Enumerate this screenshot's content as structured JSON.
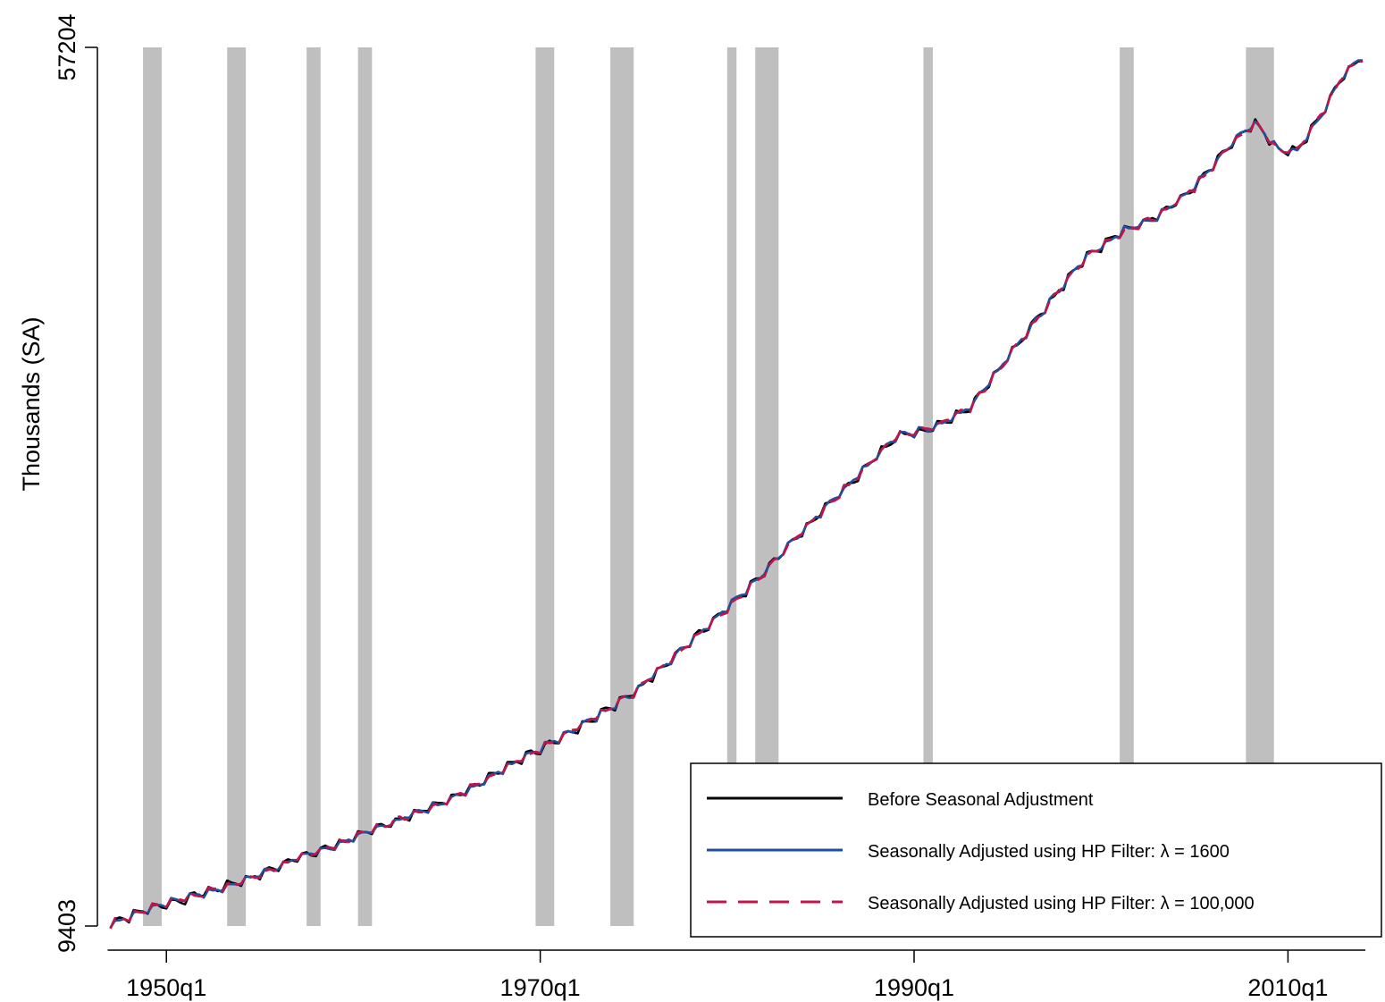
{
  "chart_data": {
    "type": "line",
    "title": "",
    "xlabel": "",
    "ylabel": "Thousands (SA)",
    "x_tick_labels": [
      "1950q1",
      "1970q1",
      "1990q1",
      "2010q1"
    ],
    "x_tick_values": [
      1950.0,
      1970.0,
      1990.0,
      2010.0
    ],
    "y_tick_labels": [
      "9403",
      "57204"
    ],
    "y_tick_values": [
      9403,
      57204
    ],
    "xlim": [
      1946.5,
      2015.0
    ],
    "ylim": [
      9403,
      57204
    ],
    "recession_bands": [
      [
        1948.75,
        1949.75
      ],
      [
        1953.25,
        1954.25
      ],
      [
        1957.5,
        1958.25
      ],
      [
        1960.25,
        1961.0
      ],
      [
        1969.75,
        1970.75
      ],
      [
        1973.75,
        1975.0
      ],
      [
        1980.0,
        1980.5
      ],
      [
        1981.5,
        1982.75
      ],
      [
        1990.5,
        1991.0
      ],
      [
        2001.0,
        2001.75
      ],
      [
        2007.75,
        2009.25
      ]
    ],
    "legend_position": "bottom-right",
    "series": [
      {
        "name": "Before Seasonal Adjustment",
        "color": "#000000",
        "dash": "solid",
        "seed": 1,
        "x": [
          1947.0,
          1949.0,
          1951.0,
          1953.0,
          1955.0,
          1957.0,
          1959.0,
          1961.0,
          1963.0,
          1965.0,
          1967.0,
          1969.0,
          1971.0,
          1973.0,
          1975.0,
          1977.0,
          1979.0,
          1981.0,
          1983.0,
          1985.0,
          1987.0,
          1989.0,
          1991.0,
          1993.0,
          1995.0,
          1997.0,
          1999.0,
          2001.0,
          2003.0,
          2005.0,
          2007.0,
          2008.25,
          2009.5,
          2010.5,
          2012.0,
          2013.0,
          2014.0
        ],
        "y": [
          9500,
          10300,
          10900,
          11500,
          12200,
          13100,
          13800,
          14600,
          15400,
          16200,
          17300,
          18500,
          19600,
          20800,
          22100,
          23900,
          25800,
          27600,
          29800,
          31900,
          33900,
          36000,
          36500,
          37600,
          40300,
          43000,
          45600,
          47100,
          48000,
          49600,
          52000,
          53100,
          51600,
          51600,
          53900,
          55800,
          56700
        ]
      },
      {
        "name": "Seasonally Adjusted using HP Filter: λ = 1600",
        "color": "#1f4fa0",
        "dash": "solid",
        "seed": 2,
        "x": [
          1947.0,
          1949.0,
          1951.0,
          1953.0,
          1955.0,
          1957.0,
          1959.0,
          1961.0,
          1963.0,
          1965.0,
          1967.0,
          1969.0,
          1971.0,
          1973.0,
          1975.0,
          1977.0,
          1979.0,
          1981.0,
          1983.0,
          1985.0,
          1987.0,
          1989.0,
          1991.0,
          1993.0,
          1995.0,
          1997.0,
          1999.0,
          2001.0,
          2003.0,
          2005.0,
          2007.0,
          2008.25,
          2009.5,
          2010.5,
          2012.0,
          2013.0,
          2014.0
        ],
        "y": [
          9500,
          10300,
          10900,
          11500,
          12200,
          13100,
          13800,
          14600,
          15400,
          16200,
          17300,
          18500,
          19600,
          20800,
          22100,
          23900,
          25800,
          27600,
          29800,
          31900,
          33900,
          36000,
          36500,
          37600,
          40300,
          43000,
          45600,
          47100,
          48000,
          49600,
          52000,
          53100,
          51600,
          51600,
          53900,
          55800,
          56700
        ]
      },
      {
        "name": "Seasonally Adjusted using HP Filter: λ = 100,000",
        "color": "#c0144a",
        "dash": "dashed",
        "seed": 3,
        "x": [
          1947.0,
          1949.0,
          1951.0,
          1953.0,
          1955.0,
          1957.0,
          1959.0,
          1961.0,
          1963.0,
          1965.0,
          1967.0,
          1969.0,
          1971.0,
          1973.0,
          1975.0,
          1977.0,
          1979.0,
          1981.0,
          1983.0,
          1985.0,
          1987.0,
          1989.0,
          1991.0,
          1993.0,
          1995.0,
          1997.0,
          1999.0,
          2001.0,
          2003.0,
          2005.0,
          2007.0,
          2008.25,
          2009.5,
          2010.5,
          2012.0,
          2013.0,
          2014.0
        ],
        "y": [
          9500,
          10300,
          10900,
          11500,
          12200,
          13100,
          13800,
          14600,
          15400,
          16200,
          17300,
          18500,
          19600,
          20800,
          22100,
          23900,
          25800,
          27600,
          29800,
          31900,
          33900,
          36000,
          36500,
          37600,
          40300,
          43000,
          45600,
          47100,
          48000,
          49600,
          52000,
          53100,
          51600,
          51600,
          53900,
          55800,
          56700
        ]
      }
    ]
  }
}
